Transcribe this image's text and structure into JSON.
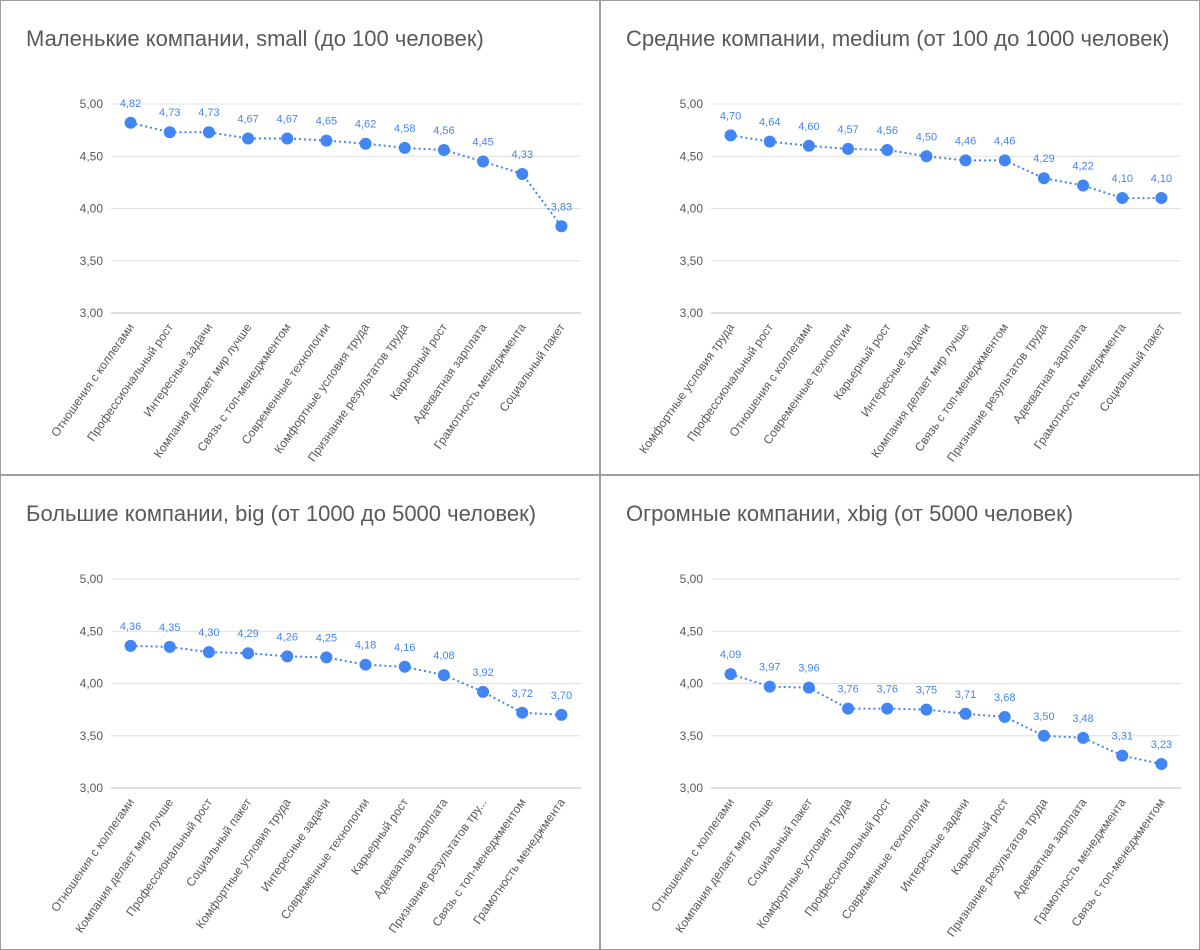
{
  "chart_data": [
    {
      "type": "line",
      "title": "Маленькие компании, small (до 100 человек)",
      "categories": [
        "Отношения с коллегами",
        "Профессиональный рост",
        "Интересные задачи",
        "Компания делает мир лучше",
        "Связь с топ-менеджментом",
        "Современные технологии",
        "Комфортные условия труда",
        "Признание результатов труда",
        "Карьерный рост",
        "Адекватная зарплата",
        "Грамотность менеджмента",
        "Социальный пакет"
      ],
      "values": [
        4.82,
        4.73,
        4.73,
        4.67,
        4.67,
        4.65,
        4.62,
        4.58,
        4.56,
        4.45,
        4.33,
        3.83
      ],
      "labels": [
        "4,82",
        "4,73",
        "4,73",
        "4,67",
        "4,67",
        "4,65",
        "4,62",
        "4,58",
        "4,56",
        "4,45",
        "4,33",
        "3,83"
      ],
      "ylim": [
        3,
        5
      ],
      "ytick_labels": [
        "3,00",
        "3,50",
        "4,00",
        "4,50",
        "5,00"
      ],
      "grid": true,
      "color": "#4285f4"
    },
    {
      "type": "line",
      "title": "Средние компании, medium (от 100 до 1000 человек)",
      "categories": [
        "Комфортные условия труда",
        "Профессиональный рост",
        "Отношения с коллегами",
        "Современные технологии",
        "Карьерный рост",
        "Интересные задачи",
        "Компания делает мир лучше",
        "Связь с топ-менеджментом",
        "Признание результатов труда",
        "Адекватная зарплата",
        "Грамотность менеджмента",
        "Социальный пакет"
      ],
      "values": [
        4.7,
        4.64,
        4.6,
        4.57,
        4.56,
        4.5,
        4.46,
        4.46,
        4.29,
        4.22,
        4.1,
        4.1
      ],
      "labels": [
        "4,70",
        "4,64",
        "4,60",
        "4,57",
        "4,56",
        "4,50",
        "4,46",
        "4,46",
        "4,29",
        "4,22",
        "4,10",
        "4,10"
      ],
      "ylim": [
        3,
        5
      ],
      "ytick_labels": [
        "3,00",
        "3,50",
        "4,00",
        "4,50",
        "5,00"
      ],
      "grid": true,
      "color": "#4285f4"
    },
    {
      "type": "line",
      "title": "Большие компании, big (от 1000 до 5000 человек)",
      "categories": [
        "Отношения с коллегами",
        "Компания делает мир лучше",
        "Профессиональный рост",
        "Социальный пакет",
        "Комфортные условия труда",
        "Интересные задачи",
        "Современные технологии",
        "Карьерный рост",
        "Адекватная зарплата",
        "Признание результатов тру...",
        "Связь с топ-менеджментом",
        "Грамотность менеджмента"
      ],
      "values": [
        4.36,
        4.35,
        4.3,
        4.29,
        4.26,
        4.25,
        4.18,
        4.16,
        4.08,
        3.92,
        3.72,
        3.7
      ],
      "labels": [
        "4,36",
        "4,35",
        "4,30",
        "4,29",
        "4,26",
        "4,25",
        "4,18",
        "4,16",
        "4,08",
        "3,92",
        "3,72",
        "3,70"
      ],
      "ylim": [
        3,
        5
      ],
      "ytick_labels": [
        "3,00",
        "3,50",
        "4,00",
        "4,50",
        "5,00"
      ],
      "grid": true,
      "color": "#4285f4"
    },
    {
      "type": "line",
      "title": "Огромные компании, xbig (от 5000 человек)",
      "categories": [
        "Отношения с коллегами",
        "Компания делает мир лучше",
        "Социальный пакет",
        "Комфортные условия труда",
        "Профессиональный рост",
        "Современные технологии",
        "Интересные задачи",
        "Карьерный рост",
        "Признание результатов труда",
        "Адекватная зарплата",
        "Грамотность менеджмента",
        "Связь с топ-менеджментом"
      ],
      "values": [
        4.09,
        3.97,
        3.96,
        3.76,
        3.76,
        3.75,
        3.71,
        3.68,
        3.5,
        3.48,
        3.31,
        3.23
      ],
      "labels": [
        "4,09",
        "3,97",
        "3,96",
        "3,76",
        "3,76",
        "3,75",
        "3,71",
        "3,68",
        "3,50",
        "3,48",
        "3,31",
        "3,23"
      ],
      "ylim": [
        3,
        5
      ],
      "ytick_labels": [
        "3,00",
        "3,50",
        "4,00",
        "4,50",
        "5,00"
      ],
      "grid": true,
      "color": "#4285f4"
    }
  ]
}
